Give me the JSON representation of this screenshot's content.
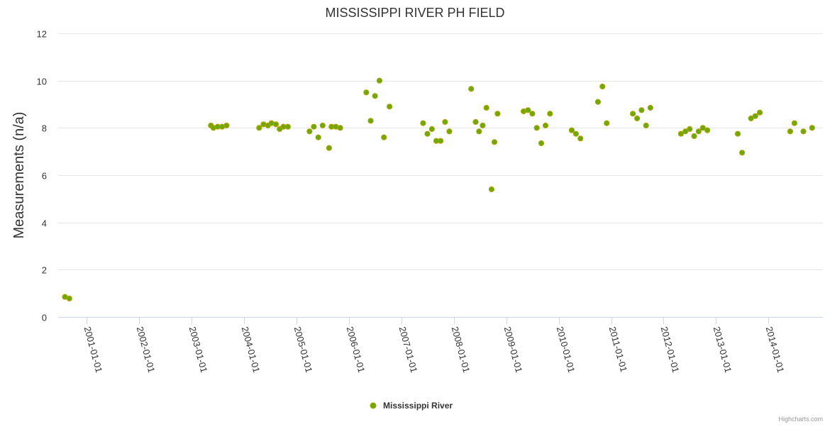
{
  "chart_data": {
    "type": "scatter",
    "title": "MISSISSIPPI RIVER PH FIELD",
    "xlabel": "",
    "ylabel": "Measurements (n/a)",
    "ylim": [
      0,
      12
    ],
    "yticks": [
      0,
      2,
      4,
      6,
      8,
      10,
      12
    ],
    "xlim": [
      "2000-06-15",
      "2015-01-15"
    ],
    "xticks": [
      "2001-01-01",
      "2002-01-01",
      "2003-01-01",
      "2004-01-01",
      "2005-01-01",
      "2006-01-01",
      "2007-01-01",
      "2008-01-01",
      "2009-01-01",
      "2010-01-01",
      "2011-01-01",
      "2012-01-01",
      "2013-01-01",
      "2014-01-01"
    ],
    "grid": true,
    "legend_position": "bottom-center",
    "series": [
      {
        "name": "Mississippi River",
        "color": "#6aaa0a",
        "border_color": "#b0a000",
        "points": [
          [
            "2000-08-01",
            0.85
          ],
          [
            "2000-09-01",
            0.78
          ],
          [
            "2003-05-15",
            8.1
          ],
          [
            "2003-06-01",
            8.0
          ],
          [
            "2003-07-01",
            8.05
          ],
          [
            "2003-08-01",
            8.05
          ],
          [
            "2003-09-01",
            8.1
          ],
          [
            "2004-04-15",
            8.0
          ],
          [
            "2004-05-15",
            8.15
          ],
          [
            "2004-06-15",
            8.1
          ],
          [
            "2004-07-10",
            8.2
          ],
          [
            "2004-08-10",
            8.15
          ],
          [
            "2004-09-05",
            7.95
          ],
          [
            "2004-10-01",
            8.05
          ],
          [
            "2004-11-01",
            8.05
          ],
          [
            "2005-04-01",
            7.85
          ],
          [
            "2005-05-01",
            8.05
          ],
          [
            "2005-06-01",
            7.6
          ],
          [
            "2005-07-01",
            8.1
          ],
          [
            "2005-08-15",
            7.15
          ],
          [
            "2005-09-01",
            8.05
          ],
          [
            "2005-10-01",
            8.05
          ],
          [
            "2005-11-01",
            8.0
          ],
          [
            "2006-05-01",
            9.5
          ],
          [
            "2006-06-01",
            8.3
          ],
          [
            "2006-07-01",
            9.35
          ],
          [
            "2006-08-01",
            10.0
          ],
          [
            "2006-09-01",
            7.6
          ],
          [
            "2006-10-10",
            8.9
          ],
          [
            "2007-06-01",
            8.2
          ],
          [
            "2007-07-01",
            7.75
          ],
          [
            "2007-08-01",
            7.95
          ],
          [
            "2007-09-01",
            7.45
          ],
          [
            "2007-10-01",
            7.45
          ],
          [
            "2007-11-01",
            8.25
          ],
          [
            "2007-12-01",
            7.85
          ],
          [
            "2008-05-01",
            9.65
          ],
          [
            "2008-06-01",
            8.25
          ],
          [
            "2008-06-25",
            7.85
          ],
          [
            "2008-07-20",
            8.1
          ],
          [
            "2008-08-15",
            8.85
          ],
          [
            "2008-09-20",
            5.4
          ],
          [
            "2008-10-10",
            7.4
          ],
          [
            "2008-11-01",
            8.6
          ],
          [
            "2009-05-01",
            8.7
          ],
          [
            "2009-06-01",
            8.75
          ],
          [
            "2009-07-01",
            8.6
          ],
          [
            "2009-08-01",
            8.0
          ],
          [
            "2009-09-01",
            7.35
          ],
          [
            "2009-10-01",
            8.1
          ],
          [
            "2009-11-01",
            8.6
          ],
          [
            "2010-04-01",
            7.9
          ],
          [
            "2010-05-01",
            7.75
          ],
          [
            "2010-06-01",
            7.55
          ],
          [
            "2010-10-01",
            9.1
          ],
          [
            "2010-11-01",
            9.75
          ],
          [
            "2010-12-01",
            8.2
          ],
          [
            "2011-06-01",
            8.6
          ],
          [
            "2011-07-01",
            8.4
          ],
          [
            "2011-08-01",
            8.75
          ],
          [
            "2011-09-01",
            8.1
          ],
          [
            "2011-10-01",
            8.85
          ],
          [
            "2012-05-01",
            7.75
          ],
          [
            "2012-06-01",
            7.85
          ],
          [
            "2012-07-01",
            7.95
          ],
          [
            "2012-08-01",
            7.65
          ],
          [
            "2012-09-01",
            7.85
          ],
          [
            "2012-10-01",
            8.0
          ],
          [
            "2012-11-01",
            7.9
          ],
          [
            "2013-06-01",
            7.75
          ],
          [
            "2013-07-01",
            6.95
          ],
          [
            "2013-09-01",
            8.4
          ],
          [
            "2013-10-01",
            8.5
          ],
          [
            "2013-11-01",
            8.65
          ],
          [
            "2014-06-01",
            7.85
          ],
          [
            "2014-07-01",
            8.2
          ],
          [
            "2014-09-01",
            7.85
          ],
          [
            "2014-11-01",
            8.0
          ]
        ]
      }
    ]
  },
  "legend": {
    "label": "Mississippi River"
  },
  "credits": "Highcharts.com"
}
